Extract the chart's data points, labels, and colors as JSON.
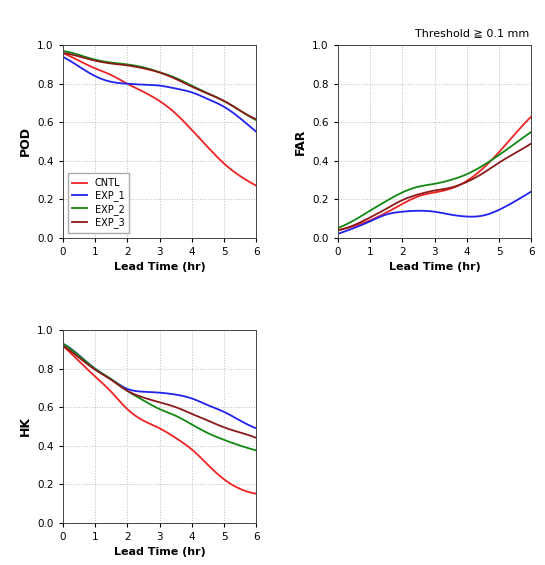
{
  "colors": {
    "CNTL": "#EE2222",
    "EXP_1": "#2222EE",
    "EXP_2": "#118811",
    "EXP_3": "#8B1A1A"
  },
  "legend_labels": [
    "CNTL",
    "EXP_1",
    "EXP_2",
    "EXP_3"
  ],
  "x_label": "Lead Time (hr)",
  "pod_ylabel": "POD",
  "far_ylabel": "FAR",
  "hk_ylabel": "HK",
  "threshold_text": "Threshold ≧ 0.1 mm",
  "xlim": [
    0,
    6
  ],
  "ylim": [
    0.0,
    1.0
  ],
  "yticks": [
    0.0,
    0.2,
    0.4,
    0.6,
    0.8,
    1.0
  ],
  "xticks": [
    0,
    1,
    2,
    3,
    4,
    5,
    6
  ],
  "grid_color": "#BBBBBB",
  "background_color": "#FFFFFF",
  "linewidth": 1.3
}
